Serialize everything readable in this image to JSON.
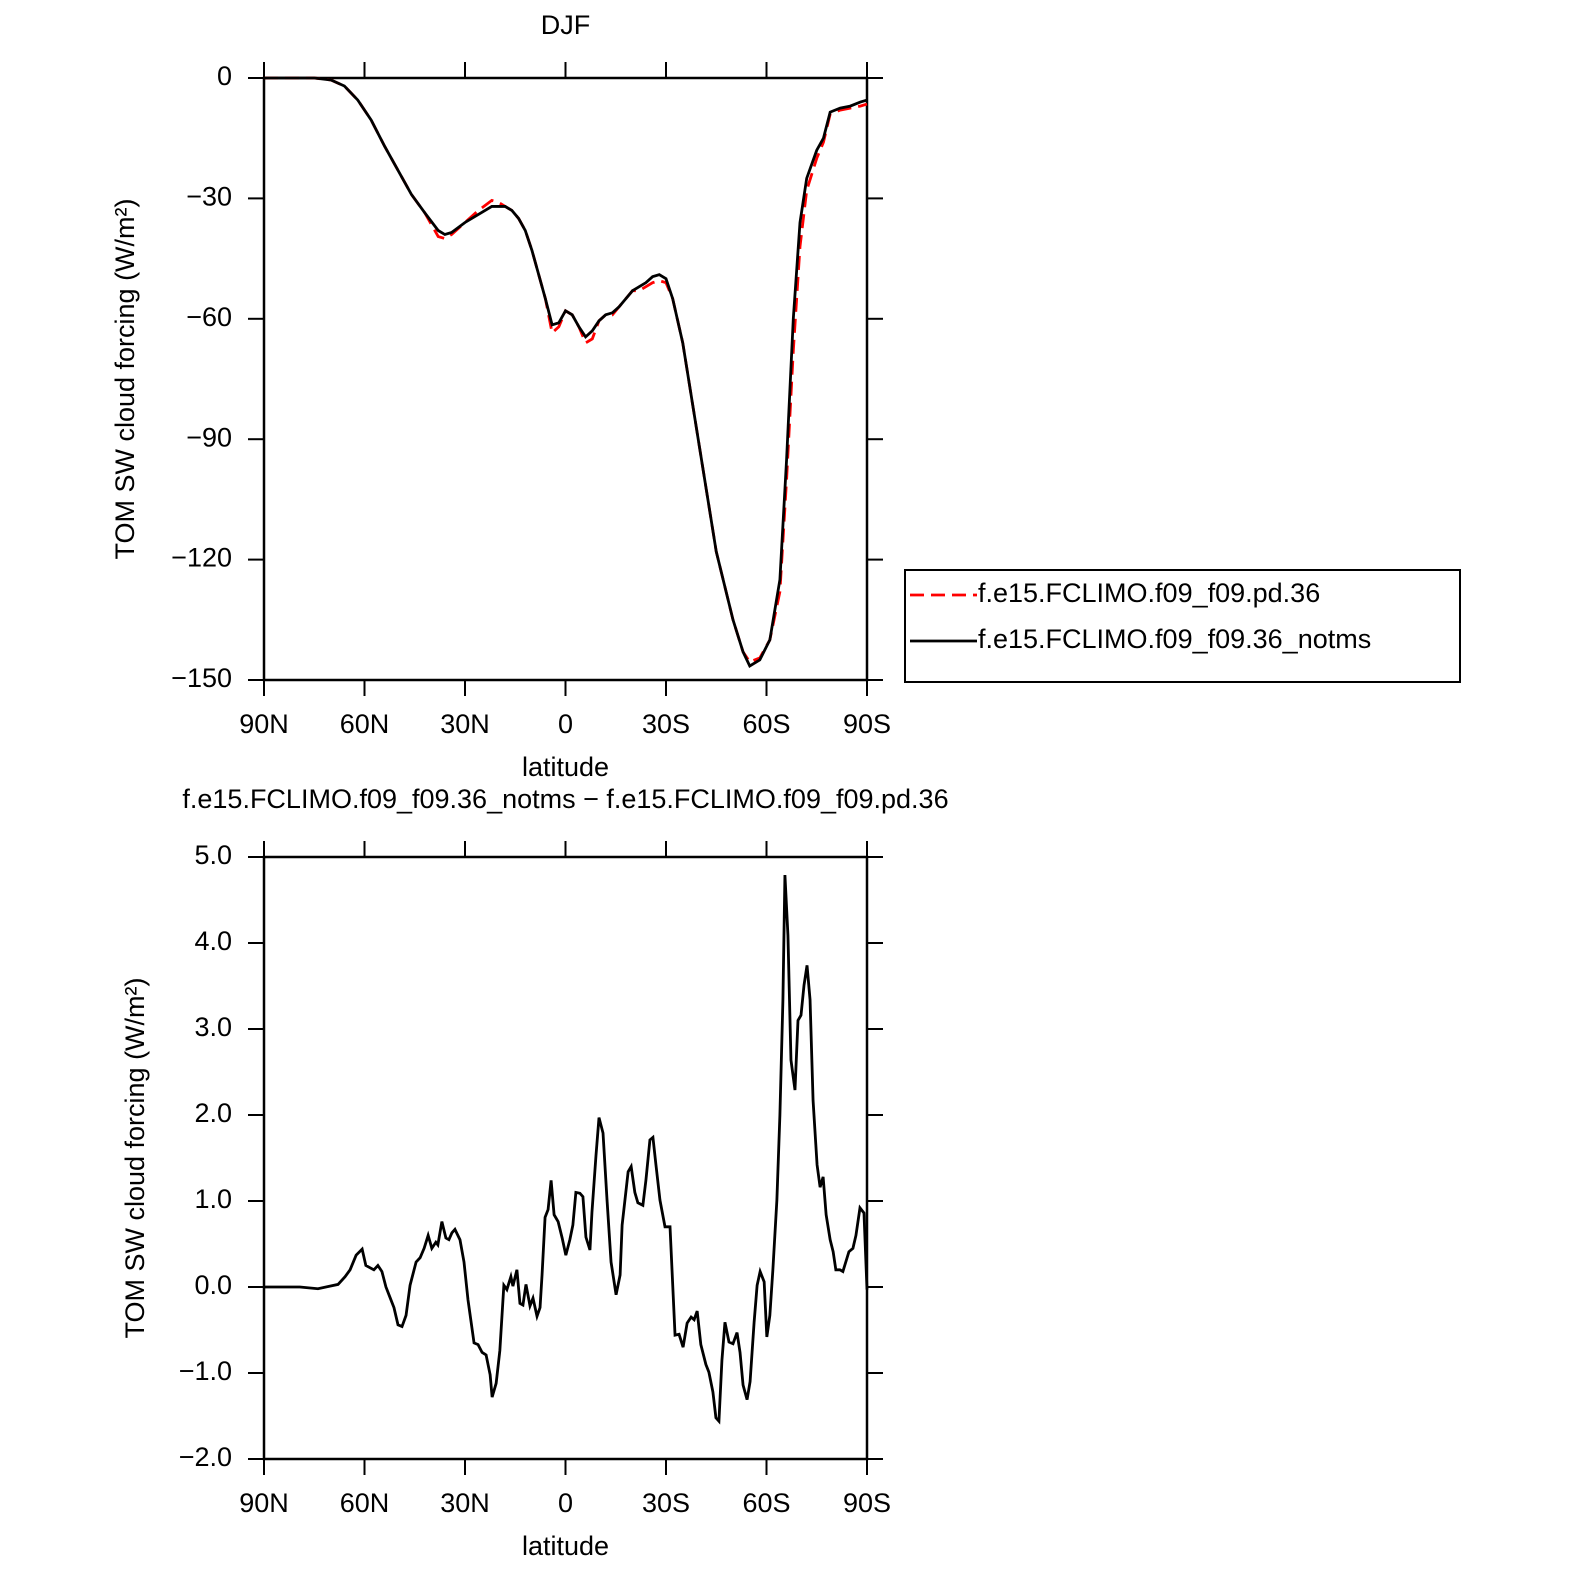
{
  "chart_data": [
    {
      "type": "line",
      "title": "DJF",
      "xlabel": "latitude",
      "ylabel": "TOM SW cloud forcing (W/m²)",
      "xlim": [
        90,
        -90
      ],
      "xticks": [
        {
          "value": 90,
          "label": "90N"
        },
        {
          "value": 60,
          "label": "60N"
        },
        {
          "value": 30,
          "label": "30N"
        },
        0,
        {
          "value": -30,
          "label": "30S"
        },
        {
          "value": -60,
          "label": "60S"
        },
        {
          "value": -90,
          "label": "90S"
        }
      ],
      "ylim": [
        -150,
        0
      ],
      "yticks": [
        0,
        {
          "value": -30,
          "label": "−30"
        },
        {
          "value": -60,
          "label": "−60"
        },
        {
          "value": -90,
          "label": "−90"
        },
        {
          "value": -120,
          "label": "−120"
        },
        {
          "value": -150,
          "label": "−150"
        }
      ],
      "legend": "right",
      "x": [
        90,
        80,
        75,
        70,
        66,
        62,
        58,
        54,
        50,
        46,
        42,
        38,
        36,
        34,
        30,
        26,
        22,
        20,
        18,
        16,
        14,
        12,
        10,
        8,
        6,
        4,
        2,
        0,
        -2,
        -4,
        -6,
        -8,
        -10,
        -12,
        -14,
        -16,
        -18,
        -20,
        -22,
        -24,
        -26,
        -28,
        -30,
        -32,
        -35,
        -40,
        -45,
        -50,
        -53,
        -55,
        -58,
        -61,
        -64,
        -66,
        -68,
        -70,
        -72,
        -75,
        -77,
        -79,
        -82,
        -85,
        -88,
        -90
      ],
      "series": [
        {
          "name": "f.e15.FCLIMO.f09_f09.pd.36",
          "color": "#ff0000",
          "linestyle": "dashed",
          "values": [
            0,
            0,
            0,
            -0.5,
            -2,
            -5.5,
            -10.5,
            -17,
            -23,
            -29,
            -33.6,
            -39.5,
            -40,
            -39,
            -36,
            -33,
            -30.5,
            -31,
            -32,
            -33,
            -35,
            -38,
            -43,
            -49,
            -55,
            -63.5,
            -62,
            -58,
            -59,
            -62,
            -66,
            -65,
            -60.5,
            -59,
            -59,
            -57,
            -55,
            -53,
            -53,
            -52,
            -51,
            -50.5,
            -51,
            -55,
            -66,
            -92,
            -118,
            -135,
            -143,
            -145.5,
            -144.5,
            -140,
            -128,
            -100,
            -68,
            -42,
            -28,
            -20,
            -16,
            -9,
            -8,
            -7.5,
            -7,
            -6.5
          ]
        },
        {
          "name": "f.e15.FCLIMO.f09_f09.36_notms",
          "color": "#000000",
          "linestyle": "solid",
          "values": [
            0,
            0,
            0,
            -0.5,
            -2,
            -5.5,
            -10.5,
            -17,
            -23,
            -29,
            -33.6,
            -38,
            -39,
            -38.5,
            -36,
            -34,
            -32,
            -32,
            -32,
            -33,
            -35,
            -38,
            -43,
            -49,
            -55,
            -61.5,
            -61,
            -58,
            -59,
            -62,
            -64.5,
            -63,
            -60.5,
            -59,
            -58.5,
            -57,
            -55,
            -53,
            -52,
            -51,
            -49.5,
            -49,
            -50,
            -55,
            -66,
            -92,
            -118,
            -135,
            -143,
            -146.5,
            -145,
            -140,
            -125,
            -95,
            -60,
            -36,
            -25,
            -18,
            -15,
            -8.5,
            -7.5,
            -7,
            -6,
            -5.5
          ]
        }
      ]
    },
    {
      "type": "line",
      "title": "f.e15.FCLIMO.f09_f09.36_notms − f.e15.FCLIMO.f09_f09.pd.36",
      "xlabel": "latitude",
      "ylabel": "TOM SW cloud forcing (W/m²)",
      "xlim": [
        90,
        -90
      ],
      "xticks": [
        {
          "value": 90,
          "label": "90N"
        },
        {
          "value": 60,
          "label": "60N"
        },
        {
          "value": 30,
          "label": "30N"
        },
        0,
        {
          "value": -30,
          "label": "30S"
        },
        {
          "value": -60,
          "label": "60S"
        },
        {
          "value": -90,
          "label": "90S"
        }
      ],
      "ylim": [
        -2,
        5
      ],
      "yticks": [
        {
          "value": 5,
          "label": "5.0"
        },
        {
          "value": 4,
          "label": "4.0"
        },
        {
          "value": 3,
          "label": "3.0"
        },
        {
          "value": 2,
          "label": "2.0"
        },
        {
          "value": 1,
          "label": "1.0"
        },
        {
          "value": 0,
          "label": "0.0"
        },
        {
          "value": -1,
          "label": "−1.0"
        },
        {
          "value": -2,
          "label": "−2.0"
        }
      ],
      "x": [
        90,
        79.3,
        73.9,
        70.3,
        67.9,
        65.8,
        64.3,
        62.5,
        60.7,
        59.6,
        57.2,
        56.0,
        54.8,
        53.6,
        52.4,
        51.2,
        50.0,
        48.8,
        47.6,
        46.4,
        44.6,
        43.4,
        42.2,
        41.0,
        39.9,
        38.7,
        38.1,
        36.9,
        35.7,
        34.8,
        33.9,
        33.0,
        31.5,
        30.3,
        29.1,
        27.3,
        26.1,
        24.9,
        23.7,
        22.5,
        21.9,
        20.7,
        19.6,
        18.4,
        17.5,
        16.3,
        15.7,
        14.5,
        13.6,
        12.7,
        11.8,
        10.6,
        9.7,
        8.5,
        7.6,
        7.0,
        6.1,
        5.2,
        4.3,
        3.4,
        2.2,
        1.0,
        -0.1,
        -1.3,
        -2.2,
        -3.1,
        -4.3,
        -5.2,
        -6.1,
        -7.3,
        -7.9,
        -9.1,
        -10.0,
        -11.2,
        -12.4,
        -13.6,
        -15.1,
        -16.3,
        -16.9,
        -18.7,
        -19.6,
        -20.7,
        -21.6,
        -23.1,
        -24.0,
        -25.2,
        -26.1,
        -27.0,
        -28.2,
        -29.7,
        -31.2,
        -32.7,
        -33.9,
        -35.1,
        -36.3,
        -37.5,
        -38.4,
        -39.3,
        -40.4,
        -41.9,
        -42.8,
        -44.0,
        -44.9,
        -45.8,
        -46.7,
        -47.6,
        -48.8,
        -50.0,
        -51.2,
        -52.1,
        -53.0,
        -54.2,
        -55.1,
        -56.3,
        -57.2,
        -58.1,
        -59.3,
        -60.1,
        -61.0,
        -61.9,
        -63.1,
        -64.0,
        -64.9,
        -65.5,
        -66.4,
        -67.3,
        -68.5,
        -69.4,
        -70.3,
        -71.2,
        -72.1,
        -73.0,
        -73.9,
        -75.1,
        -76.0,
        -76.9,
        -77.8,
        -79.0,
        -79.9,
        -80.7,
        -81.9,
        -82.8,
        -84.6,
        -85.8,
        -86.7,
        -87.9,
        -89.1,
        -90
      ],
      "series": [
        {
          "color": "#000000",
          "linestyle": "solid",
          "values": [
            0,
            0,
            -0.02,
            0.01,
            0.03,
            0.12,
            0.2,
            0.37,
            0.44,
            0.25,
            0.2,
            0.25,
            0.18,
            0,
            -0.12,
            -0.24,
            -0.44,
            -0.46,
            -0.33,
            0.02,
            0.29,
            0.34,
            0.45,
            0.6,
            0.45,
            0.52,
            0.49,
            0.76,
            0.57,
            0.55,
            0.63,
            0.67,
            0.55,
            0.29,
            -0.15,
            -0.65,
            -0.67,
            -0.76,
            -0.79,
            -1.02,
            -1.28,
            -1.12,
            -0.74,
            0.02,
            -0.03,
            0.12,
            0.01,
            0.2,
            -0.19,
            -0.21,
            0.03,
            -0.22,
            -0.13,
            -0.34,
            -0.24,
            0.14,
            0.81,
            0.9,
            1.24,
            0.84,
            0.76,
            0.57,
            0.37,
            0.55,
            0.72,
            1.1,
            1.09,
            1.05,
            0.58,
            0.43,
            0.87,
            1.53,
            1.97,
            1.79,
            1.01,
            0.29,
            -0.09,
            0.14,
            0.72,
            1.34,
            1.4,
            1.1,
            0.98,
            0.95,
            1.24,
            1.71,
            1.74,
            1.42,
            1.01,
            0.7,
            0.7,
            -0.56,
            -0.55,
            -0.7,
            -0.42,
            -0.35,
            -0.38,
            -0.28,
            -0.67,
            -0.9,
            -0.99,
            -1.22,
            -1.52,
            -1.56,
            -0.85,
            -0.41,
            -0.64,
            -0.66,
            -0.53,
            -0.76,
            -1.14,
            -1.31,
            -1.1,
            -0.41,
            0.02,
            0.18,
            0.06,
            -0.58,
            -0.33,
            0.2,
            1.01,
            2.0,
            3.34,
            4.79,
            4.09,
            2.64,
            2.29,
            3.1,
            3.16,
            3.51,
            3.74,
            3.34,
            2.17,
            1.42,
            1.16,
            1.28,
            0.84,
            0.55,
            0.41,
            0.2,
            0.2,
            0.18,
            0.41,
            0.45,
            0.6,
            0.92,
            0.86,
            -0.03
          ]
        }
      ]
    }
  ]
}
